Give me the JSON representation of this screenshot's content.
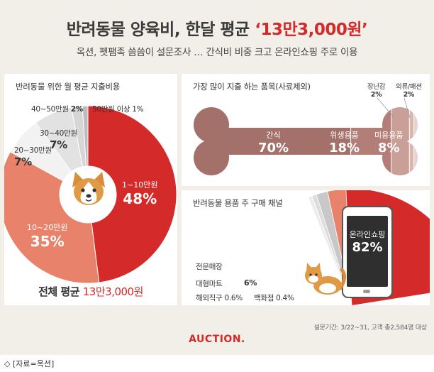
{
  "header": {
    "title_prefix": "반려동물 양육비, 한달 평균",
    "title_highlight": "‘13만3,000원’",
    "subtitle": "옥션, 펫팸족 씀씀이 설문조사 … 간식비 비중 크고 온라인쇼핑 주로 이용"
  },
  "colors": {
    "brand_red": "#d42a2a",
    "salmon": "#e9826b",
    "bone_brown": "#a4706a",
    "bone_light": "#c99f98",
    "background": "#f2efe9"
  },
  "chart_data": [
    {
      "type": "pie",
      "title": "반려동물 위한 월 평균 지출비용",
      "slices": [
        {
          "label": "1~10만원",
          "value": 48,
          "value_text": "48%",
          "color": "#d42a2a"
        },
        {
          "label": "10~20만원",
          "value": 35,
          "value_text": "35%",
          "color": "#e9826b"
        },
        {
          "label": "20~30만원",
          "value": 7,
          "value_text": "7%",
          "color": "#f2f2f2"
        },
        {
          "label": "30~40만원",
          "value": 7,
          "value_text": "7%",
          "color": "#e2e2e2"
        },
        {
          "label": "40~50만원",
          "value": 2,
          "value_text": "2%",
          "color": "#d6d6d6"
        },
        {
          "label": "50만원 이상",
          "value": 1,
          "value_text": "1%",
          "color": "#bdbdbd"
        }
      ],
      "total_label": "전체 평균",
      "total_value": "13만3,000원"
    },
    {
      "type": "bar",
      "title": "가장 많이 지출 하는 품목(사료제외)",
      "categories": [
        "간식",
        "위생용품",
        "미용용품",
        "장난감",
        "의류/패션"
      ],
      "values": [
        70,
        18,
        8,
        2,
        2
      ],
      "value_texts": [
        "70%",
        "18%",
        "8%",
        "2%",
        "2%"
      ]
    },
    {
      "type": "pie",
      "title": "반려동물 용품 주 구매 채널",
      "slices": [
        {
          "label": "온라인쇼핑",
          "value": 82,
          "value_text": "82%"
        },
        {
          "label": "전문매장",
          "value": 11,
          "value_text": "11%"
        },
        {
          "label": "대형마트",
          "value": 6,
          "value_text": "6%"
        },
        {
          "label": "해외직구",
          "value": 0.6,
          "value_text": "0.6%"
        },
        {
          "label": "백화점",
          "value": 0.4,
          "value_text": "0.4%"
        }
      ]
    }
  ],
  "footer": {
    "survey_note": "설문기간: 3/22~31, 고객 총2,584명 대상",
    "logo": "AUCTION.",
    "source": "◇ [자료=옥션]"
  }
}
